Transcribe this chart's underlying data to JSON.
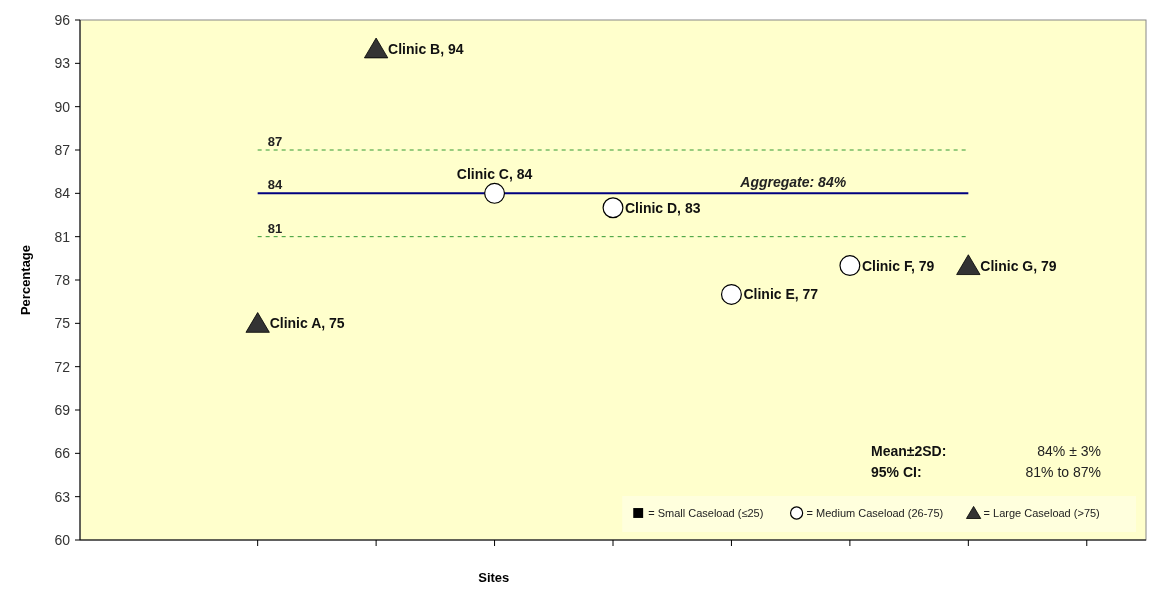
{
  "chart_data": {
    "type": "scatter",
    "xlabel": "Sites",
    "ylabel": "Percentage",
    "categories": [
      null,
      null,
      null,
      null,
      null,
      null,
      null,
      null,
      null
    ],
    "ylim": [
      60,
      96
    ],
    "yticks": [
      60,
      63,
      66,
      69,
      72,
      75,
      78,
      81,
      84,
      87,
      90,
      93,
      96
    ],
    "series": [
      {
        "name": "= Small Caseload (≤25)",
        "color": "#000000",
        "marker": "square",
        "values": [
          null,
          null,
          null,
          null,
          null,
          null,
          null,
          null,
          null
        ]
      },
      {
        "name": "= Medium Caseload (26-75)",
        "color": "#ffffff",
        "marker": "circle",
        "values": [
          null,
          null,
          null,
          84,
          83,
          77,
          79,
          null,
          null
        ],
        "value_labels": [
          null,
          null,
          null,
          "Clinic C, 84",
          "Clinic D, 83",
          "Clinic E, 77",
          "Clinic F, 79",
          null,
          null
        ]
      },
      {
        "name": "= Large Caseload (>75)",
        "color": "#333333",
        "marker": "triangle",
        "values": [
          null,
          75,
          94,
          null,
          null,
          null,
          null,
          79,
          null
        ],
        "value_labels": [
          null,
          "Clinic A, 75",
          "Clinic B, 94",
          null,
          null,
          null,
          null,
          "Clinic G, 79",
          null
        ]
      }
    ],
    "ref_lines": [
      {
        "axis": "y",
        "value": 84,
        "label": "Aggregate: 84%",
        "color": "#000080",
        "line_style": "solid"
      },
      {
        "axis": "y",
        "value": 87,
        "label": "87",
        "color": "#339933",
        "line_style": "dashed"
      },
      {
        "axis": "y",
        "value": 81,
        "label": "81",
        "color": "#339933",
        "line_style": "dashed"
      }
    ],
    "annotations": [
      {
        "text": "84",
        "y": 84
      },
      "Mean±2SD:  84% ± 3%",
      "95% CI:  81% to 87%"
    ],
    "legend": "bottom right",
    "grid": false
  }
}
